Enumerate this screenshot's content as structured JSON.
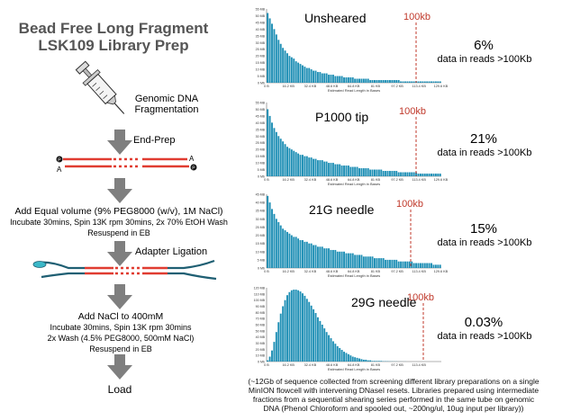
{
  "protocol": {
    "title_line1": "Bead Free Long Fragment",
    "title_line2": "LSK109 Library Prep",
    "step_fragmentation_1": "Genomic DNA",
    "step_fragmentation_2": "Fragmentation",
    "step_endprep": "End-Prep",
    "strand_labels": {
      "p": "P",
      "a_left": "A",
      "a_right": "A",
      "p_right": "P"
    },
    "step_peg_1": "Add Equal volume (9% PEG8000 (w/v), 1M NaCl)",
    "step_peg_2": "Incubate 30mins, Spin 13K rpm 30mins, 2x 70% EtOH Wash",
    "step_peg_3": "Resuspend in EB",
    "step_adapter": "Adapter Ligation",
    "step_nacl_1": "Add NaCl to 400mM",
    "step_nacl_2": "Incubate 30mins, Spin 13K rpm 30mins",
    "step_nacl_3": "2x Wash (4.5% PEG8000, 500mM NaCl)",
    "step_nacl_4": "Resuspend in EB",
    "step_load": "Load",
    "colors": {
      "arrow": "#7f7f7f",
      "strand": "#e03c31",
      "adapter": "#1f5f73",
      "adapter_end": "#3cb8c8"
    }
  },
  "panels": [
    {
      "title": "Unsheared",
      "marker_label": "100kb",
      "percent": "6%",
      "percent_note": "data in reads >100Kb",
      "x_axis_label": "Estimated Read Length in Bases",
      "x_ticks": [
        "0 B",
        "16.2 KB",
        "32.4 KB",
        "48.6 KB",
        "64.8 KB",
        "81 KB",
        "97.2 KB",
        "113.4 KB",
        "129.6 KB"
      ],
      "y_ticks": [
        "0 Mb",
        "5 MB",
        "10 MB",
        "15 MB",
        "20 MB",
        "25 MB",
        "30 MB",
        "35 MB",
        "40 MB",
        "45 MB",
        "50 MB",
        "55 MB"
      ]
    },
    {
      "title": "P1000 tip",
      "marker_label": "100kb",
      "percent": "21%",
      "percent_note": "data in reads >100Kb",
      "x_axis_label": "Estimated Read Length in Bases",
      "x_ticks": [
        "0 B",
        "16.2 KB",
        "32.4 KB",
        "48.6 KB",
        "64.8 KB",
        "81 KB",
        "97.2 KB",
        "113.4 KB",
        "129.6 KB"
      ],
      "y_ticks": [
        "0 Mb",
        "5 MB",
        "10 MB",
        "15 MB",
        "20 MB",
        "25 MB",
        "30 MB",
        "35 MB",
        "40 MB",
        "45 MB",
        "50 MB",
        "55 MB"
      ]
    },
    {
      "title": "21G needle",
      "marker_label": "100kb",
      "percent": "15%",
      "percent_note": "data in reads >100Kb",
      "x_axis_label": "Estimated Read Length in Bases",
      "x_ticks": [
        "0 B",
        "16.2 KB",
        "32.4 KB",
        "48.6 KB",
        "64.8 KB",
        "81 KB",
        "97.2 KB",
        "113.4 KB",
        "129.6 KB"
      ],
      "y_ticks": [
        "0 Mb",
        "5 MB",
        "10 MB",
        "15 MB",
        "20 MB",
        "25 MB",
        "30 MB",
        "35 MB",
        "40 MB",
        "45 MB"
      ]
    },
    {
      "title": "29G needle",
      "marker_label": "100kb",
      "percent": "0.03%",
      "percent_note": "data in reads >100Kb",
      "x_axis_label": "Estimated Read Length in Bases",
      "x_ticks": [
        "0 B",
        "16.2 KB",
        "32.4 KB",
        "48.6 KB",
        "64.8 KB",
        "81 KB",
        "97.2 KB",
        "113.4 KB"
      ],
      "y_ticks": [
        "0 Mb",
        "10 MB",
        "20 MB",
        "30 MB",
        "40 MB",
        "50 MB",
        "60 MB",
        "70 MB",
        "80 MB",
        "90 MB",
        "100 MB",
        "110 MB",
        "120 MB"
      ]
    }
  ],
  "caption": {
    "line1": "(~12Gb of sequence collected from screening different library preparations on a single",
    "line2": "MinION flowcell with intervening DNaseI resets. Libraries prepared using intermediate",
    "line3": "fractions from a sequential shearing series performed in the same tube on genomic",
    "line4": "DNA (Phenol Chloroform and spooled out, ~200ng/ul, 10ug input per library))"
  },
  "chart_data": [
    {
      "type": "bar",
      "title": "Unsheared",
      "xlabel": "Estimated Read Length in Bases",
      "ylabel": "",
      "xlim_kb": [
        0,
        130
      ],
      "ylim_mb": [
        0,
        55
      ],
      "bin_kb": 1.62,
      "marker_kb": 100,
      "values_mb": [
        52,
        48,
        44,
        40,
        36,
        32,
        29,
        26,
        24,
        22,
        20,
        19,
        18,
        16,
        15,
        14,
        13,
        12,
        11,
        11,
        10,
        9,
        9,
        8,
        8,
        7,
        7,
        7,
        6,
        6,
        6,
        5,
        5,
        5,
        5,
        4,
        4,
        4,
        4,
        4,
        3,
        3,
        3,
        3,
        3,
        3,
        3,
        2,
        2,
        2,
        2,
        2,
        2,
        2,
        2,
        2,
        2,
        2,
        2,
        2,
        2,
        1,
        1,
        1,
        1,
        1,
        1,
        1,
        1,
        1,
        1,
        1,
        1,
        1,
        1,
        1,
        1,
        1,
        1,
        1
      ]
    },
    {
      "type": "bar",
      "title": "P1000 tip",
      "xlabel": "Estimated Read Length in Bases",
      "ylabel": "",
      "xlim_kb": [
        0,
        130
      ],
      "ylim_mb": [
        0,
        55
      ],
      "bin_kb": 1.62,
      "marker_kb": 100,
      "values_mb": [
        50,
        45,
        40,
        36,
        33,
        30,
        28,
        26,
        24,
        22,
        21,
        20,
        19,
        18,
        17,
        16,
        16,
        15,
        15,
        14,
        14,
        13,
        13,
        12,
        12,
        12,
        11,
        11,
        10,
        10,
        10,
        9,
        9,
        9,
        8,
        8,
        8,
        8,
        7,
        7,
        7,
        7,
        6,
        6,
        6,
        6,
        6,
        5,
        5,
        5,
        5,
        5,
        5,
        4,
        4,
        4,
        4,
        4,
        4,
        4,
        3,
        3,
        3,
        3,
        3,
        3,
        3,
        3,
        3,
        2,
        2,
        2,
        2,
        2,
        2,
        2,
        2,
        2,
        2,
        2
      ]
    },
    {
      "type": "bar",
      "title": "21G needle",
      "xlabel": "Estimated Read Length in Bases",
      "ylabel": "",
      "xlim_kb": [
        0,
        130
      ],
      "ylim_mb": [
        0,
        45
      ],
      "bin_kb": 1.62,
      "marker_kb": 100,
      "values_mb": [
        44,
        40,
        36,
        33,
        30,
        28,
        26,
        24,
        23,
        22,
        21,
        20,
        19,
        19,
        18,
        17,
        17,
        16,
        16,
        15,
        15,
        14,
        14,
        13,
        13,
        13,
        12,
        12,
        12,
        11,
        11,
        11,
        10,
        10,
        10,
        10,
        9,
        9,
        9,
        9,
        8,
        8,
        8,
        8,
        7,
        7,
        7,
        7,
        7,
        6,
        6,
        6,
        6,
        6,
        5,
        5,
        5,
        5,
        5,
        5,
        4,
        4,
        4,
        4,
        4,
        4,
        4,
        3,
        3,
        3,
        3,
        3,
        3,
        3,
        3,
        3,
        2,
        2,
        2,
        2
      ]
    },
    {
      "type": "bar",
      "title": "29G needle",
      "xlabel": "Estimated Read Length in Bases",
      "ylabel": "",
      "xlim_kb": [
        0,
        130
      ],
      "ylim_mb": [
        0,
        120
      ],
      "bin_kb": 1.62,
      "marker_kb": 100,
      "values_mb": [
        2,
        8,
        18,
        32,
        48,
        64,
        78,
        90,
        100,
        108,
        113,
        116,
        117,
        117,
        116,
        114,
        111,
        107,
        102,
        97,
        91,
        85,
        79,
        72,
        66,
        60,
        54,
        48,
        43,
        38,
        33,
        29,
        25,
        22,
        19,
        16,
        14,
        12,
        10,
        8,
        7,
        6,
        5,
        4,
        3,
        3,
        2,
        2,
        1,
        1,
        1,
        1,
        1,
        0.5,
        0.5,
        0.5,
        0.3,
        0.3,
        0.2,
        0.2,
        0.1,
        0.1,
        0.1,
        0.1,
        0,
        0,
        0,
        0,
        0,
        0,
        0,
        0,
        0,
        0,
        0,
        0,
        0,
        0,
        0,
        0
      ]
    }
  ]
}
